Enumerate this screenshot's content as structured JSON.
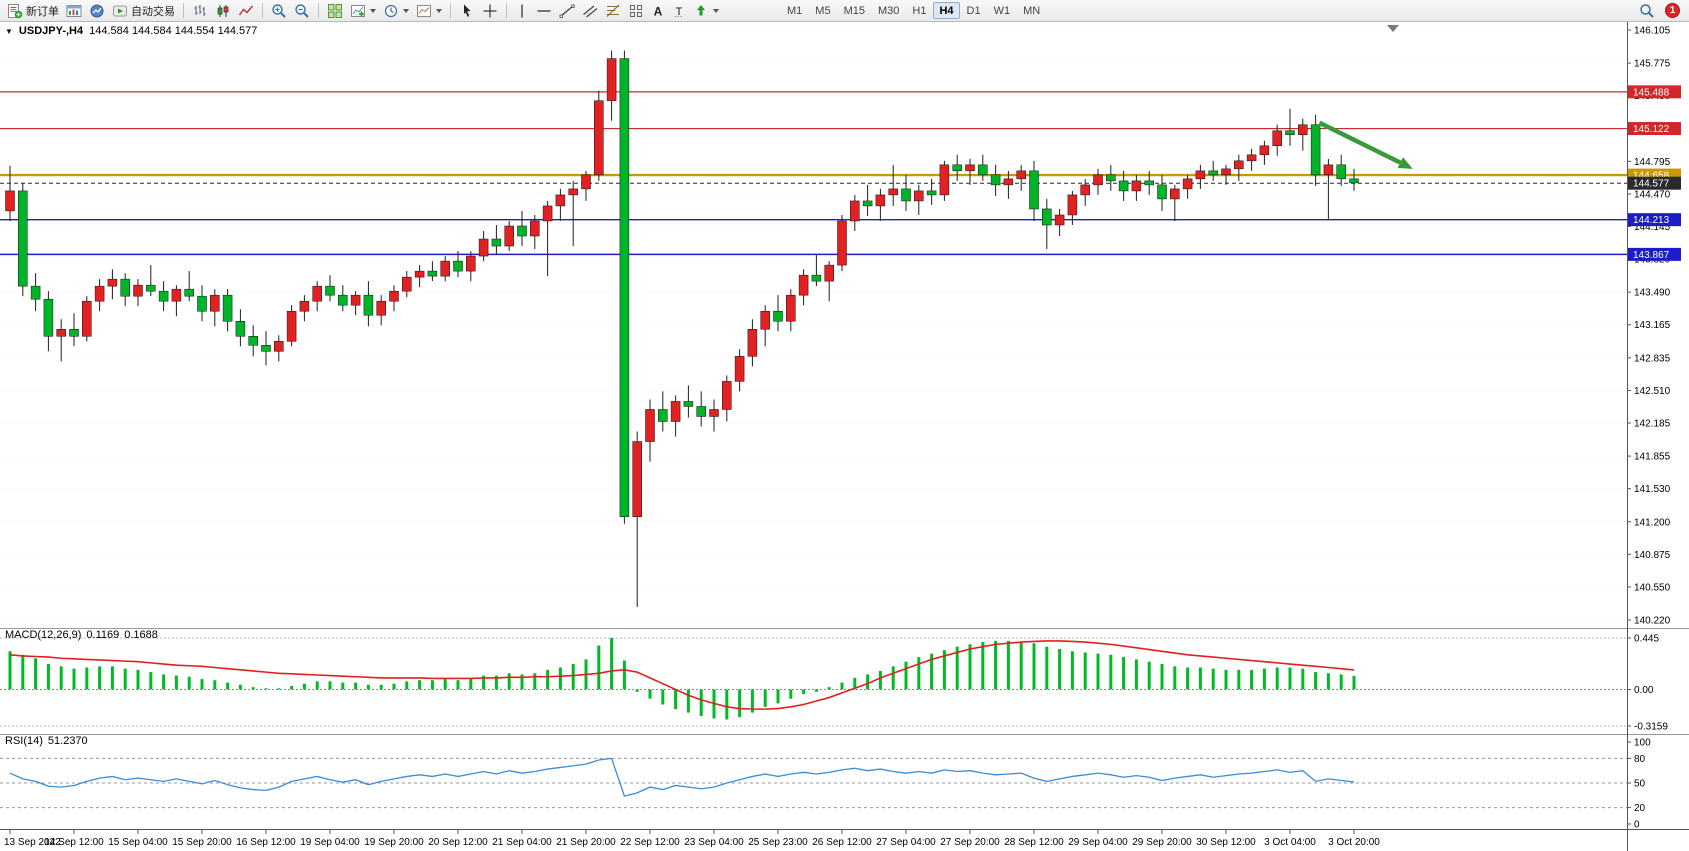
{
  "toolbar": {
    "new_order": "新订单",
    "auto_trading": "自动交易",
    "timeframes": [
      "M1",
      "M5",
      "M15",
      "M30",
      "H1",
      "H4",
      "D1",
      "W1",
      "MN"
    ],
    "active_timeframe": "H4",
    "notification_count": "1"
  },
  "icons": {
    "collapse_triangle": "▼",
    "text_tool": "A",
    "label_tool": "T"
  },
  "price_chart": {
    "title": "USDJPY-,H4",
    "ohlc": "144.584 144.584 144.554 144.577",
    "price_max": 146.105,
    "price_min": 140.22,
    "axis_labels": [
      "146.105",
      "145.775",
      "145.450",
      "145.125",
      "144.795",
      "144.470",
      "144.145",
      "143.820",
      "143.490",
      "143.165",
      "142.835",
      "142.510",
      "142.185",
      "141.855",
      "141.530",
      "141.200",
      "140.875",
      "140.550",
      "140.220"
    ]
  },
  "macd_panel": {
    "label": "MACD(12,26,9)",
    "value_main": "0.1169",
    "value_signal": "0.1688",
    "axis_labels": [
      "0.445",
      "0.00",
      "-0.3159"
    ]
  },
  "rsi_panel": {
    "label": "RSI(14)",
    "value": "51.2370",
    "axis_labels": [
      "100",
      "80",
      "50",
      "20",
      "0"
    ]
  },
  "time_axis": [
    "13 Sep 2022",
    "14 Sep 12:00",
    "15 Sep 04:00",
    "15 Sep 20:00",
    "16 Sep 12:00",
    "19 Sep 04:00",
    "19 Sep 20:00",
    "20 Sep 12:00",
    "21 Sep 04:00",
    "21 Sep 20:00",
    "22 Sep 12:00",
    "23 Sep 04:00",
    "25 Sep 23:00",
    "26 Sep 12:00",
    "27 Sep 04:00",
    "27 Sep 20:00",
    "28 Sep 12:00",
    "29 Sep 04:00",
    "29 Sep 20:00",
    "30 Sep 12:00",
    "3 Oct 04:00",
    "3 Oct 20:00"
  ],
  "chart_data": {
    "type": "candlestick",
    "symbol": "USDJPY-",
    "timeframe": "H4",
    "up_color": "#e02222",
    "down_color": "#00b42a",
    "wick_color": "#1e1e1e",
    "candles_ohlc": [
      [
        144.3,
        144.75,
        144.2,
        144.5
      ],
      [
        144.5,
        144.58,
        143.45,
        143.55
      ],
      [
        143.55,
        143.68,
        143.3,
        143.42
      ],
      [
        143.42,
        143.5,
        142.9,
        143.05
      ],
      [
        143.05,
        143.22,
        142.8,
        143.12
      ],
      [
        143.12,
        143.28,
        142.95,
        143.05
      ],
      [
        143.05,
        143.45,
        143.0,
        143.4
      ],
      [
        143.4,
        143.62,
        143.3,
        143.55
      ],
      [
        143.55,
        143.72,
        143.42,
        143.62
      ],
      [
        143.62,
        143.68,
        143.35,
        143.45
      ],
      [
        143.45,
        143.62,
        143.35,
        143.56
      ],
      [
        143.56,
        143.76,
        143.45,
        143.5
      ],
      [
        143.5,
        143.6,
        143.3,
        143.4
      ],
      [
        143.4,
        143.56,
        143.25,
        143.52
      ],
      [
        143.52,
        143.7,
        143.4,
        143.45
      ],
      [
        143.45,
        143.56,
        143.2,
        143.3
      ],
      [
        143.3,
        143.52,
        143.15,
        143.46
      ],
      [
        143.46,
        143.52,
        143.1,
        143.2
      ],
      [
        143.2,
        143.32,
        142.95,
        143.05
      ],
      [
        143.05,
        143.16,
        142.85,
        142.96
      ],
      [
        142.96,
        143.1,
        142.76,
        142.9
      ],
      [
        142.9,
        143.06,
        142.8,
        143.0
      ],
      [
        143.0,
        143.36,
        142.95,
        143.3
      ],
      [
        143.3,
        143.46,
        143.2,
        143.4
      ],
      [
        143.4,
        143.6,
        143.3,
        143.55
      ],
      [
        143.55,
        143.66,
        143.4,
        143.46
      ],
      [
        143.46,
        143.56,
        143.3,
        143.36
      ],
      [
        143.36,
        143.5,
        143.26,
        143.46
      ],
      [
        143.46,
        143.6,
        143.15,
        143.26
      ],
      [
        143.26,
        143.46,
        143.16,
        143.4
      ],
      [
        143.4,
        143.56,
        143.3,
        143.5
      ],
      [
        143.5,
        143.7,
        143.44,
        143.64
      ],
      [
        143.64,
        143.76,
        143.54,
        143.7
      ],
      [
        143.7,
        143.8,
        143.6,
        143.65
      ],
      [
        143.65,
        143.85,
        143.6,
        143.8
      ],
      [
        143.8,
        143.9,
        143.64,
        143.7
      ],
      [
        143.7,
        143.9,
        143.6,
        143.85
      ],
      [
        143.85,
        144.1,
        143.8,
        144.02
      ],
      [
        144.02,
        144.16,
        143.86,
        143.95
      ],
      [
        143.95,
        144.2,
        143.9,
        144.15
      ],
      [
        144.15,
        144.3,
        143.95,
        144.05
      ],
      [
        144.05,
        144.26,
        143.92,
        144.2
      ],
      [
        144.2,
        144.4,
        143.65,
        144.35
      ],
      [
        144.35,
        144.52,
        144.2,
        144.46
      ],
      [
        144.46,
        144.6,
        143.95,
        144.52
      ],
      [
        144.52,
        144.7,
        144.4,
        144.66
      ],
      [
        144.66,
        145.5,
        144.6,
        145.4
      ],
      [
        145.4,
        145.9,
        145.2,
        145.82
      ],
      [
        145.82,
        145.9,
        141.18,
        141.25
      ],
      [
        141.25,
        142.1,
        140.35,
        142.0
      ],
      [
        142.0,
        142.42,
        141.8,
        142.32
      ],
      [
        142.32,
        142.5,
        142.1,
        142.2
      ],
      [
        142.2,
        142.46,
        142.05,
        142.4
      ],
      [
        142.4,
        142.56,
        142.24,
        142.35
      ],
      [
        142.35,
        142.5,
        142.15,
        142.25
      ],
      [
        142.25,
        142.42,
        142.1,
        142.32
      ],
      [
        142.32,
        142.66,
        142.2,
        142.6
      ],
      [
        142.6,
        142.92,
        142.5,
        142.85
      ],
      [
        142.85,
        143.22,
        142.75,
        143.12
      ],
      [
        143.12,
        143.36,
        142.95,
        143.3
      ],
      [
        143.3,
        143.46,
        143.1,
        143.2
      ],
      [
        143.2,
        143.52,
        143.1,
        143.46
      ],
      [
        143.46,
        143.72,
        143.36,
        143.66
      ],
      [
        143.66,
        143.86,
        143.55,
        143.6
      ],
      [
        143.6,
        143.8,
        143.4,
        143.76
      ],
      [
        143.76,
        144.26,
        143.7,
        144.2
      ],
      [
        144.2,
        144.46,
        144.1,
        144.4
      ],
      [
        144.4,
        144.56,
        144.25,
        144.35
      ],
      [
        144.35,
        144.52,
        144.2,
        144.46
      ],
      [
        144.46,
        144.76,
        144.35,
        144.52
      ],
      [
        144.52,
        144.66,
        144.3,
        144.4
      ],
      [
        144.4,
        144.56,
        144.26,
        144.5
      ],
      [
        144.5,
        144.62,
        144.36,
        144.46
      ],
      [
        144.46,
        144.8,
        144.4,
        144.76
      ],
      [
        144.76,
        144.86,
        144.6,
        144.7
      ],
      [
        144.7,
        144.82,
        144.56,
        144.76
      ],
      [
        144.76,
        144.86,
        144.6,
        144.66
      ],
      [
        144.66,
        144.76,
        144.45,
        144.56
      ],
      [
        144.56,
        144.7,
        144.42,
        144.62
      ],
      [
        144.62,
        144.76,
        144.5,
        144.7
      ],
      [
        144.7,
        144.8,
        144.2,
        144.32
      ],
      [
        144.32,
        144.42,
        143.92,
        144.16
      ],
      [
        144.16,
        144.32,
        144.05,
        144.26
      ],
      [
        144.26,
        144.5,
        144.16,
        144.46
      ],
      [
        144.46,
        144.62,
        144.35,
        144.56
      ],
      [
        144.56,
        144.72,
        144.46,
        144.66
      ],
      [
        144.66,
        144.76,
        144.5,
        144.6
      ],
      [
        144.6,
        144.7,
        144.4,
        144.5
      ],
      [
        144.5,
        144.66,
        144.4,
        144.6
      ],
      [
        144.6,
        144.7,
        144.46,
        144.56
      ],
      [
        144.56,
        144.66,
        144.3,
        144.42
      ],
      [
        144.42,
        144.56,
        144.2,
        144.52
      ],
      [
        144.52,
        144.66,
        144.42,
        144.62
      ],
      [
        144.62,
        144.76,
        144.52,
        144.7
      ],
      [
        144.7,
        144.8,
        144.6,
        144.66
      ],
      [
        144.66,
        144.76,
        144.56,
        144.72
      ],
      [
        144.72,
        144.86,
        144.6,
        144.8
      ],
      [
        144.8,
        144.92,
        144.7,
        144.86
      ],
      [
        144.86,
        145.0,
        144.76,
        144.95
      ],
      [
        144.95,
        145.16,
        144.85,
        145.1
      ],
      [
        145.1,
        145.32,
        144.95,
        145.06
      ],
      [
        145.06,
        145.22,
        144.9,
        145.16
      ],
      [
        145.16,
        145.26,
        144.55,
        144.66
      ],
      [
        144.66,
        144.82,
        144.22,
        144.76
      ],
      [
        144.76,
        144.86,
        144.55,
        144.62
      ],
      [
        144.62,
        144.72,
        144.5,
        144.58
      ]
    ],
    "levels": [
      {
        "price": 145.488,
        "label": "145.488",
        "color": "#d02828",
        "width": 1.2,
        "style": "solid"
      },
      {
        "price": 145.122,
        "label": "145.122",
        "color": "#d02828",
        "width": 1.2,
        "style": "solid"
      },
      {
        "price": 144.658,
        "label": "144.658",
        "color": "#c89a00",
        "width": 2.4,
        "style": "solid"
      },
      {
        "price": 144.577,
        "label": "144.577",
        "color": "#2a2a2a",
        "width": 1,
        "style": "dashed"
      },
      {
        "price": 144.213,
        "label": "144.213",
        "color": "#1d1dc8",
        "width": 1.4,
        "style": "solid"
      },
      {
        "price": 143.867,
        "label": "143.867",
        "color": "#1d1dc8",
        "width": 1.4,
        "style": "solid"
      }
    ],
    "arrow": {
      "from_index": 102.3,
      "from_price": 145.18,
      "to_index": 109.6,
      "to_price": 144.72,
      "color": "#3a9a3a"
    },
    "indicators": {
      "macd": {
        "range_max": 0.445,
        "range_min": -0.3159,
        "histogram_color": "#00bb22",
        "signal_color": "#e02020",
        "histogram": [
          0.33,
          0.3,
          0.27,
          0.22,
          0.2,
          0.18,
          0.19,
          0.2,
          0.2,
          0.18,
          0.17,
          0.15,
          0.13,
          0.12,
          0.11,
          0.09,
          0.08,
          0.06,
          0.04,
          0.02,
          0.01,
          0.01,
          0.03,
          0.05,
          0.07,
          0.07,
          0.06,
          0.06,
          0.04,
          0.04,
          0.05,
          0.07,
          0.08,
          0.08,
          0.09,
          0.08,
          0.09,
          0.12,
          0.12,
          0.14,
          0.13,
          0.14,
          0.17,
          0.19,
          0.22,
          0.26,
          0.38,
          0.445,
          0.25,
          -0.02,
          -0.08,
          -0.13,
          -0.17,
          -0.2,
          -0.23,
          -0.25,
          -0.26,
          -0.24,
          -0.2,
          -0.15,
          -0.12,
          -0.08,
          -0.04,
          -0.02,
          0.02,
          0.06,
          0.1,
          0.13,
          0.16,
          0.2,
          0.24,
          0.28,
          0.31,
          0.34,
          0.37,
          0.39,
          0.41,
          0.42,
          0.42,
          0.41,
          0.4,
          0.37,
          0.35,
          0.33,
          0.32,
          0.31,
          0.3,
          0.28,
          0.26,
          0.24,
          0.22,
          0.2,
          0.19,
          0.19,
          0.18,
          0.17,
          0.17,
          0.17,
          0.18,
          0.19,
          0.19,
          0.18,
          0.15,
          0.14,
          0.13,
          0.117
        ],
        "signal": [
          0.3,
          0.29,
          0.285,
          0.28,
          0.27,
          0.265,
          0.26,
          0.255,
          0.25,
          0.245,
          0.24,
          0.23,
          0.22,
          0.21,
          0.205,
          0.2,
          0.19,
          0.18,
          0.17,
          0.16,
          0.15,
          0.14,
          0.135,
          0.13,
          0.125,
          0.12,
          0.115,
          0.11,
          0.105,
          0.1,
          0.1,
          0.1,
          0.1,
          0.095,
          0.095,
          0.095,
          0.095,
          0.1,
          0.1,
          0.105,
          0.105,
          0.11,
          0.11,
          0.115,
          0.12,
          0.13,
          0.14,
          0.16,
          0.17,
          0.15,
          0.1,
          0.05,
          0.0,
          -0.05,
          -0.09,
          -0.12,
          -0.15,
          -0.165,
          -0.17,
          -0.17,
          -0.165,
          -0.15,
          -0.13,
          -0.1,
          -0.07,
          -0.03,
          0.01,
          0.05,
          0.1,
          0.14,
          0.18,
          0.22,
          0.26,
          0.29,
          0.32,
          0.35,
          0.37,
          0.39,
          0.4,
          0.41,
          0.415,
          0.42,
          0.42,
          0.415,
          0.41,
          0.4,
          0.39,
          0.375,
          0.36,
          0.345,
          0.33,
          0.315,
          0.3,
          0.29,
          0.28,
          0.27,
          0.26,
          0.25,
          0.24,
          0.23,
          0.22,
          0.21,
          0.2,
          0.19,
          0.18,
          0.169
        ]
      },
      "rsi": {
        "range_max": 100,
        "range_min": 0,
        "levels": [
          80,
          50,
          20
        ],
        "line_color": "#3c8cd8",
        "values": [
          62,
          55,
          52,
          46,
          45,
          47,
          52,
          56,
          58,
          54,
          56,
          54,
          52,
          55,
          52,
          49,
          53,
          48,
          44,
          42,
          41,
          45,
          52,
          55,
          58,
          54,
          51,
          54,
          48,
          52,
          55,
          58,
          60,
          58,
          61,
          58,
          61,
          64,
          61,
          65,
          62,
          64,
          67,
          69,
          71,
          73,
          78,
          80,
          34,
          38,
          45,
          42,
          47,
          45,
          43,
          45,
          50,
          54,
          58,
          61,
          58,
          61,
          63,
          61,
          63,
          66,
          68,
          65,
          67,
          64,
          62,
          64,
          62,
          66,
          64,
          65,
          62,
          60,
          61,
          62,
          56,
          52,
          55,
          58,
          60,
          62,
          60,
          57,
          59,
          57,
          53,
          56,
          58,
          60,
          57,
          59,
          61,
          62,
          64,
          66,
          63,
          65,
          52,
          55,
          53,
          51.24
        ]
      }
    }
  }
}
